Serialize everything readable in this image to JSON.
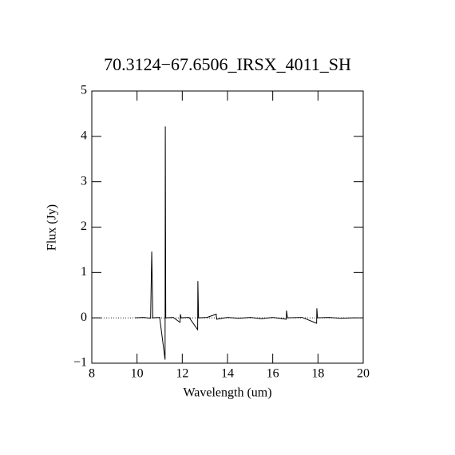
{
  "chart_data": {
    "type": "line",
    "title": "70.3124−67.6506_IRSX_4011_SH",
    "x_label": "Wavelength (um)",
    "y_label": "Flux (Jy)",
    "xlim": [
      8,
      20
    ],
    "ylim": [
      -1,
      5
    ],
    "xticks": [
      8,
      10,
      12,
      14,
      16,
      18,
      20
    ],
    "yticks": [
      {
        "value": -1,
        "label": "−1"
      },
      0,
      1,
      2,
      3,
      4,
      5
    ],
    "series": [
      {
        "color": "#000000",
        "x": [
          9.9,
          10.3,
          10.6,
          10.65,
          10.7,
          11.0,
          11.24,
          11.25,
          11.27,
          11.6,
          11.9,
          11.92,
          11.95,
          12.3,
          12.68,
          12.69,
          12.72,
          13.1,
          13.5,
          13.52,
          14.0,
          14.5,
          15.0,
          15.5,
          16.0,
          16.6,
          16.61,
          16.65,
          17.3,
          17.94,
          17.95,
          17.98,
          18.5,
          19.0,
          19.6
        ],
        "values": [
          0,
          0.01,
          -0.01,
          1.46,
          0,
          0.01,
          -0.92,
          4.22,
          0,
          0.01,
          -0.1,
          0.08,
          0,
          0.01,
          -0.26,
          0.81,
          0,
          0.01,
          0.08,
          -0.03,
          0.01,
          -0.01,
          0.01,
          -0.02,
          0.01,
          -0.03,
          0.16,
          0,
          0.01,
          -0.12,
          0.21,
          0,
          0.01,
          -0.01,
          0
        ]
      }
    ]
  }
}
